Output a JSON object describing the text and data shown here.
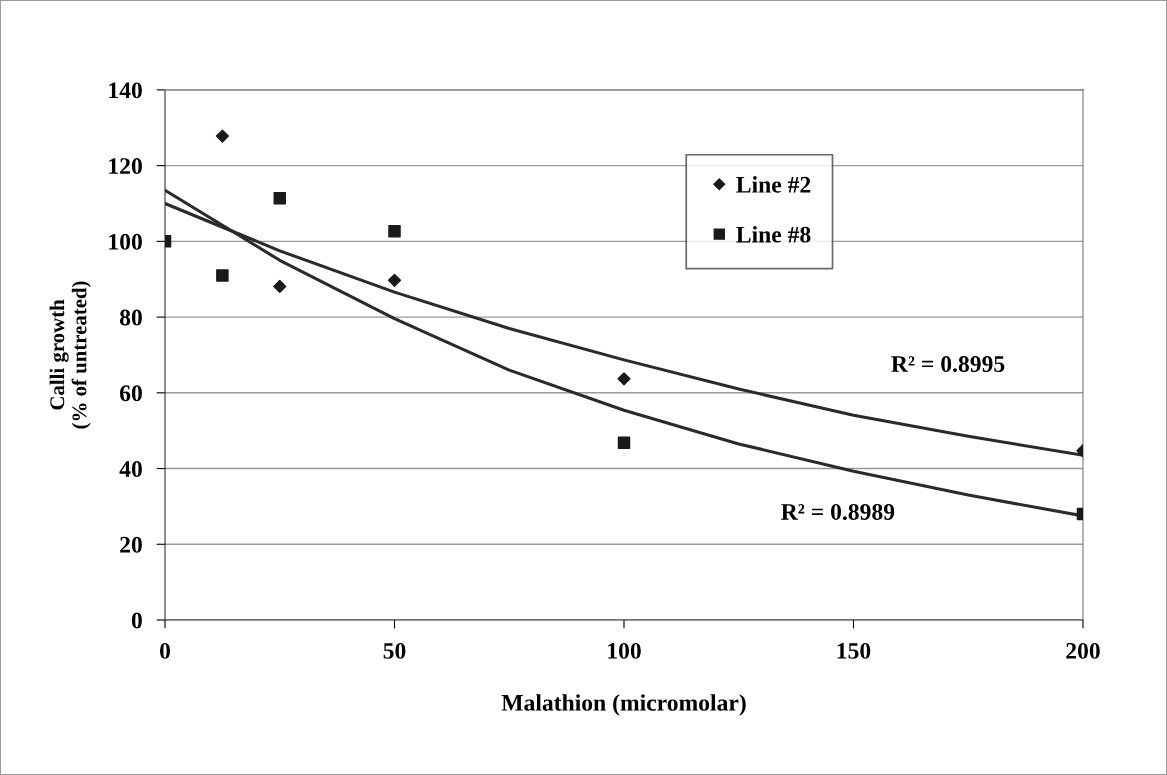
{
  "chart_data": {
    "type": "scatter",
    "xlabel": "Malathion (micromolar)",
    "ylabel": "Calli growth\n(% of untreated)",
    "xlim": [
      0,
      200
    ],
    "ylim": [
      0,
      140
    ],
    "xticks": [
      0,
      50,
      100,
      150,
      200
    ],
    "yticks": [
      0,
      20,
      40,
      60,
      80,
      100,
      120,
      140
    ],
    "grid": "y",
    "legend": "top right",
    "series": [
      {
        "name": "Line #2",
        "marker": "diamond",
        "color": "#1a1a1a",
        "x": [
          12.5,
          25,
          50,
          100,
          200
        ],
        "values": [
          127.8,
          88.1,
          89.7,
          63.7,
          44.7
        ]
      },
      {
        "name": "Line #8",
        "marker": "square",
        "color": "#1a1a1a",
        "x": [
          0,
          12.5,
          25,
          50,
          100,
          200
        ],
        "values": [
          100,
          91,
          111.4,
          102.7,
          46.8,
          28
        ]
      },
      {
        "type": "line",
        "marker": "none",
        "color": "#2a2a2a",
        "x": [
          0,
          25,
          50,
          75,
          100,
          125,
          150,
          175,
          200
        ],
        "values": [
          110,
          97.5,
          86.6,
          77,
          68.7,
          61,
          54.1,
          48.5,
          43.5
        ]
      },
      {
        "type": "line",
        "marker": "none",
        "color": "#2a2a2a",
        "x": [
          0,
          25,
          50,
          75,
          100,
          125,
          150,
          175,
          200
        ],
        "values": [
          113.5,
          95,
          79.6,
          66,
          55.4,
          46.5,
          39.3,
          33,
          27.5
        ]
      }
    ],
    "annotations": [
      "R² = 0.8995",
      "R² = 0.8989"
    ]
  }
}
